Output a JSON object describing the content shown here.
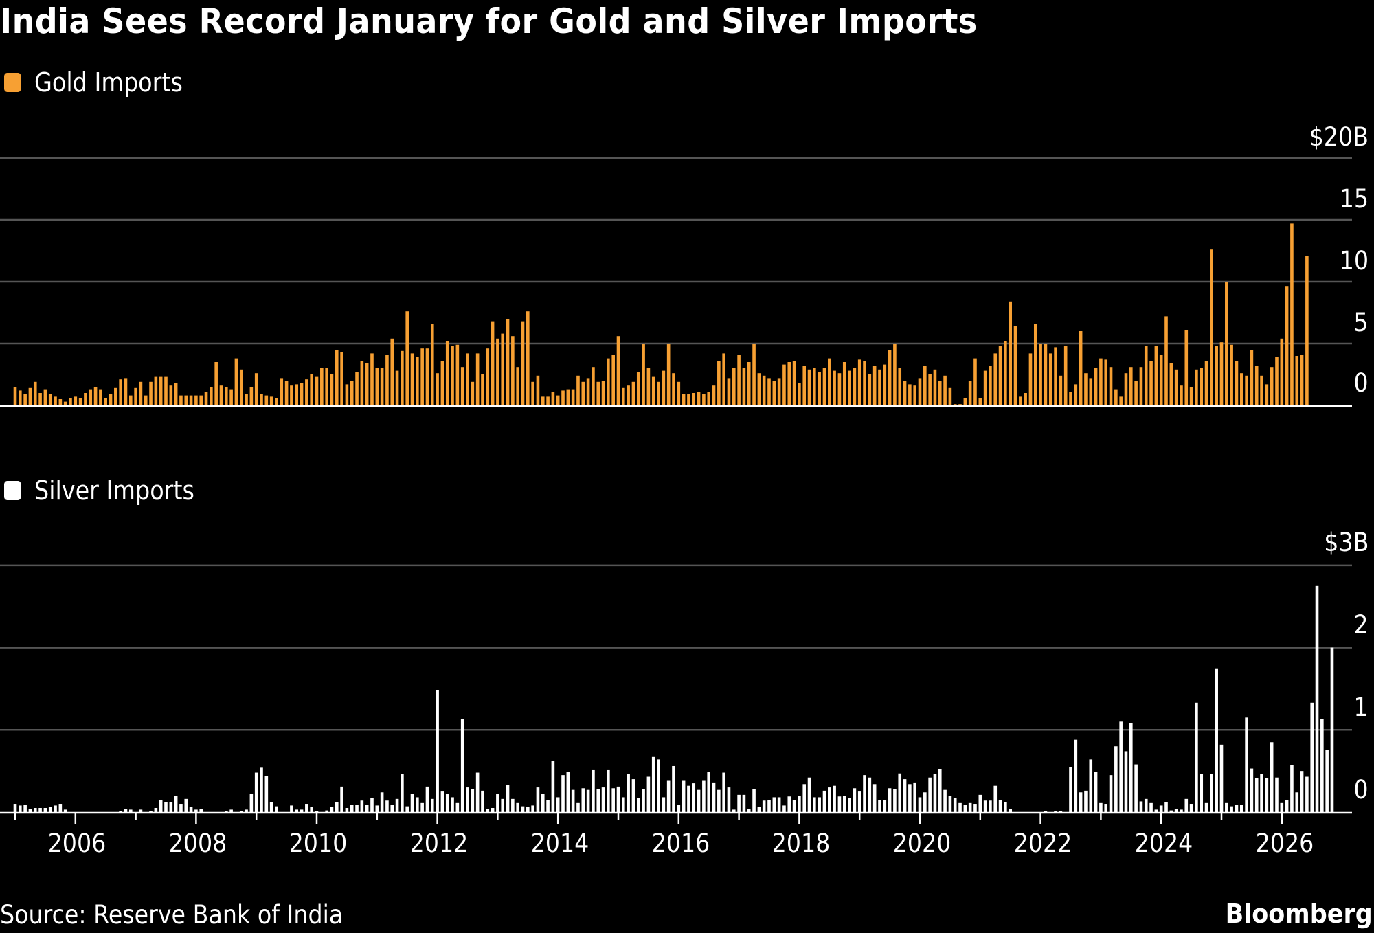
{
  "title": "India Sees Record January for Gold and Silver Imports",
  "source": "Source: Reserve Bank of India",
  "brand": "Bloomberg",
  "colors": {
    "gold": "#f7a033",
    "silver": "#ffffff",
    "grid": "#555555",
    "background": "#000000"
  },
  "chart_data": [
    {
      "type": "bar",
      "name": "Gold Imports",
      "legend": "Gold Imports",
      "legend_position": "top-left",
      "unit": "$B",
      "ylim": [
        0,
        20
      ],
      "yticks": [
        0,
        5,
        10,
        15,
        20
      ],
      "ytick_labels": [
        "0",
        "5",
        "10",
        "15",
        "$20B"
      ],
      "grid": true,
      "start": "2005-01",
      "end": "2026-01",
      "frequency": "monthly",
      "values": [
        1.5,
        1.2,
        0.9,
        1.4,
        1.9,
        1.0,
        1.3,
        0.9,
        0.7,
        0.5,
        0.3,
        0.6,
        0.7,
        0.6,
        1.0,
        1.3,
        1.5,
        1.3,
        0.6,
        0.9,
        1.4,
        2.1,
        2.2,
        0.8,
        1.4,
        1.9,
        0.8,
        1.9,
        2.3,
        2.3,
        2.3,
        1.6,
        1.8,
        0.8,
        0.8,
        0.8,
        0.8,
        0.8,
        1.1,
        1.5,
        3.5,
        1.6,
        1.5,
        1.3,
        3.8,
        2.9,
        0.9,
        1.5,
        2.6,
        0.9,
        0.8,
        0.7,
        0.6,
        2.2,
        2.0,
        1.6,
        1.7,
        1.8,
        2.1,
        2.5,
        2.3,
        3.0,
        3.0,
        2.5,
        4.5,
        4.3,
        1.7,
        2.0,
        2.7,
        3.6,
        3.4,
        4.2,
        3.0,
        3.0,
        4.1,
        5.4,
        2.8,
        4.4,
        7.6,
        4.2,
        3.9,
        4.6,
        4.6,
        6.6,
        2.6,
        3.6,
        5.2,
        4.8,
        4.9,
        3.1,
        4.2,
        1.9,
        4.2,
        2.5,
        4.6,
        6.8,
        5.4,
        5.8,
        7.0,
        5.6,
        3.1,
        6.8,
        7.6,
        1.9,
        2.4,
        0.7,
        0.7,
        1.1,
        0.8,
        1.2,
        1.3,
        1.3,
        2.4,
        1.9,
        2.2,
        3.1,
        1.9,
        2.0,
        3.8,
        4.1,
        5.6,
        1.4,
        1.6,
        1.9,
        2.7,
        5.0,
        3.0,
        2.3,
        1.9,
        2.8,
        5.0,
        2.6,
        1.9,
        0.9,
        0.9,
        1.0,
        1.1,
        0.9,
        1.1,
        1.6,
        3.6,
        4.2,
        2.2,
        3.0,
        4.1,
        3.0,
        3.5,
        5.0,
        2.6,
        2.4,
        2.2,
        2.0,
        2.2,
        3.3,
        3.5,
        3.6,
        1.8,
        3.2,
        2.9,
        3.0,
        2.7,
        3.0,
        3.8,
        2.8,
        2.6,
        3.5,
        2.8,
        3.0,
        3.7,
        3.6,
        2.5,
        3.2,
        2.9,
        3.3,
        4.5,
        5.0,
        3.0,
        2.0,
        1.7,
        1.6,
        2.2,
        3.2,
        2.5,
        2.9,
        2.0,
        2.4,
        1.4,
        0.1,
        0.1,
        0.6,
        2.0,
        3.8,
        0.6,
        2.8,
        3.2,
        4.2,
        4.8,
        5.2,
        8.4,
        6.4,
        0.7,
        1.0,
        4.2,
        6.6,
        5.0,
        5.0,
        4.2,
        4.7,
        2.4,
        4.8,
        1.1,
        1.7,
        6.0,
        2.6,
        2.2,
        3.0,
        3.8,
        3.7,
        3.1,
        1.3,
        0.7,
        2.6,
        3.1,
        2.0,
        3.1,
        4.8,
        3.6,
        4.8,
        4.1,
        7.2,
        3.4,
        2.9,
        1.6,
        6.1,
        1.5,
        2.9,
        3.0,
        3.6,
        12.6,
        4.8,
        5.1,
        10.0,
        4.9,
        3.6,
        2.6,
        2.4,
        4.5,
        3.2,
        2.4,
        1.7,
        3.1,
        3.9,
        5.4,
        9.6,
        14.7,
        4.0,
        4.1,
        12.1
      ]
    },
    {
      "type": "bar",
      "name": "Silver Imports",
      "legend": "Silver Imports",
      "legend_position": "top-left",
      "unit": "$B",
      "ylim": [
        0,
        3
      ],
      "yticks": [
        0,
        1,
        2,
        3
      ],
      "ytick_labels": [
        "0",
        "1",
        "2",
        "$3B"
      ],
      "grid": true,
      "start": "2005-01",
      "end": "2026-01",
      "frequency": "monthly",
      "xticks": [
        "2006",
        "2008",
        "2010",
        "2012",
        "2014",
        "2016",
        "2018",
        "2020",
        "2022",
        "2024",
        "2026"
      ],
      "values": [
        0.1,
        0.08,
        0.09,
        0.04,
        0.05,
        0.05,
        0.05,
        0.06,
        0.08,
        0.1,
        0.03,
        0,
        0,
        0,
        0,
        0,
        0,
        0,
        0,
        0,
        0,
        0.01,
        0.04,
        0.03,
        0,
        0.03,
        0,
        0.01,
        0.05,
        0.15,
        0.12,
        0.12,
        0.2,
        0.1,
        0.16,
        0.06,
        0.03,
        0.04,
        0,
        0,
        0,
        0,
        0.01,
        0.03,
        0,
        0.01,
        0.03,
        0.22,
        0.48,
        0.54,
        0.44,
        0.12,
        0.07,
        0,
        0,
        0.08,
        0.03,
        0.03,
        0.1,
        0.06,
        0.01,
        0,
        0.02,
        0.06,
        0.12,
        0.31,
        0.05,
        0.09,
        0.09,
        0.14,
        0.09,
        0.17,
        0.08,
        0.24,
        0.14,
        0.09,
        0.16,
        0.46,
        0.07,
        0.22,
        0.18,
        0.11,
        0.31,
        0.16,
        1.48,
        0.25,
        0.22,
        0.18,
        0.11,
        1.13,
        0.3,
        0.28,
        0.48,
        0.26,
        0.04,
        0.05,
        0.22,
        0.16,
        0.33,
        0.16,
        0.11,
        0.07,
        0.06,
        0.08,
        0.3,
        0.22,
        0.15,
        0.62,
        0.18,
        0.45,
        0.49,
        0.27,
        0.11,
        0.29,
        0.27,
        0.51,
        0.28,
        0.3,
        0.51,
        0.29,
        0.31,
        0.18,
        0.46,
        0.4,
        0.17,
        0.28,
        0.43,
        0.67,
        0.64,
        0.18,
        0.38,
        0.56,
        0.09,
        0.38,
        0.32,
        0.35,
        0.27,
        0.38,
        0.49,
        0.36,
        0.27,
        0.48,
        0.3,
        0.03,
        0.21,
        0.21,
        0.04,
        0.28,
        0.06,
        0.14,
        0.15,
        0.18,
        0.18,
        0.08,
        0.19,
        0.15,
        0.2,
        0.34,
        0.42,
        0.18,
        0.18,
        0.26,
        0.3,
        0.32,
        0.19,
        0.2,
        0.17,
        0.29,
        0.25,
        0.45,
        0.42,
        0.34,
        0.15,
        0.15,
        0.29,
        0.28,
        0.47,
        0.4,
        0.34,
        0.36,
        0.18,
        0.24,
        0.42,
        0.46,
        0.52,
        0.27,
        0.2,
        0.17,
        0.11,
        0.09,
        0.11,
        0.1,
        0.21,
        0.14,
        0.14,
        0.32,
        0.15,
        0.12,
        0.04,
        0,
        0,
        0,
        0,
        0,
        0,
        0.01,
        0,
        0.01,
        0.01,
        0,
        0.55,
        0.88,
        0.24,
        0.26,
        0.64,
        0.49,
        0.11,
        0.1,
        0.45,
        0.8,
        1.1,
        0.74,
        1.08,
        0.58,
        0.13,
        0.16,
        0.11,
        0.03,
        0.08,
        0.12,
        0.02,
        0.04,
        0.03,
        0.16,
        0.1,
        1.33,
        0.46,
        0.11,
        0.46,
        1.74,
        0.82,
        0.11,
        0.07,
        0.09,
        0.09,
        1.15,
        0.53,
        0.41,
        0.46,
        0.41,
        0.85,
        0.42,
        0.11,
        0.15,
        0.57,
        0.24,
        0.5,
        0.43,
        1.33,
        2.75,
        1.13,
        0.76,
        2.0
      ]
    }
  ]
}
